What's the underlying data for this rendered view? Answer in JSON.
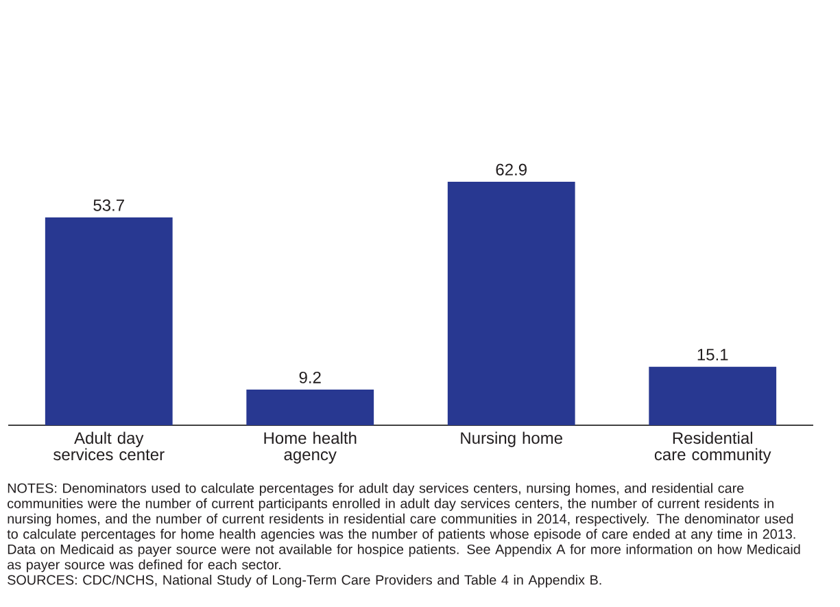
{
  "chart_data": {
    "type": "bar",
    "categories": [
      "Adult day services center",
      "Home health agency",
      "Nursing home",
      "Residential care community"
    ],
    "values": [
      53.7,
      9.2,
      62.9,
      15.1
    ],
    "color": "#283891",
    "data_labels": true,
    "annotations": [
      "NOTES: Denominators used to calculate percentages for adult day services centers, nursing homes, and residential care communities were the number of current participants enrolled in adult day services centers, the number of current residents in nursing homes, and the number of current residents in residential care communities in 2014, respectively. The denominator used to calculate percentages for home health agencies was the number of patients whose episode of care ended at any time in 2013. Data on Medicaid as payer source were not available for hospice patients. See Appendix A for more information on how Medicaid as payer source was defined for each sector.",
      "SOURCES: CDC/NCHS, National Study of Long-Term Care Providers and Table 4 in Appendix B."
    ]
  }
}
